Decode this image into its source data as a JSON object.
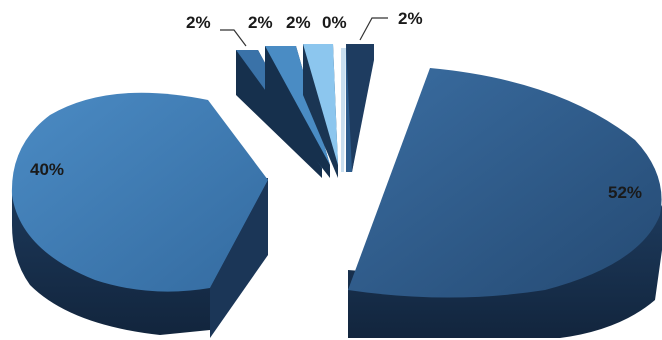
{
  "chart_data": {
    "type": "pie",
    "style": "3d-exploded",
    "title": "",
    "slices": [
      {
        "label": "52%",
        "value": 52,
        "color": "#2f5d8e"
      },
      {
        "label": "40%",
        "value": 40,
        "color": "#3f7bb4"
      },
      {
        "label": "2%",
        "value": 2,
        "color": "#2f5d8e"
      },
      {
        "label": "2%",
        "value": 2,
        "color": "#4a8cc4"
      },
      {
        "label": "2%",
        "value": 2,
        "color": "#5ea4d6"
      },
      {
        "label": "0%",
        "value": 0,
        "color": "#c9dff0"
      },
      {
        "label": "2%",
        "value": 2,
        "color": "#2f5d8e"
      }
    ],
    "legend": "none",
    "grid": false
  }
}
